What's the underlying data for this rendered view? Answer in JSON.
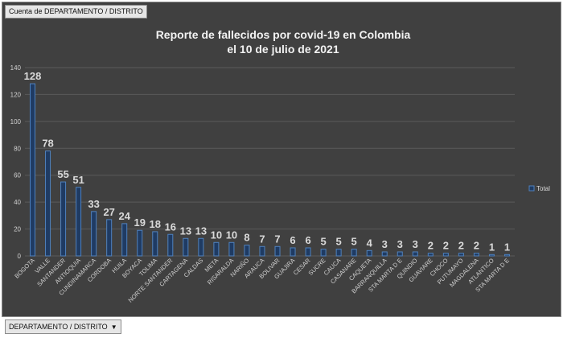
{
  "field_buttons": {
    "top": "Cuenta de DEPARTAMENTO  / DISTRITO",
    "bottom": "DEPARTAMENTO  / DISTRITO"
  },
  "colors": {
    "background": "#404040",
    "bar_fill": "#1f3b63",
    "bar_stroke": "#4f81bd",
    "gridline": "#5a5a5a",
    "text": "#d9d9d9"
  },
  "chart_data": {
    "type": "bar",
    "title": [
      "Reporte de fallecidos por covid-19 en Colombia",
      "el 10 de julio de 2021"
    ],
    "xlabel": "",
    "ylabel": "",
    "ylim": [
      0,
      140
    ],
    "yticks": [
      0,
      20,
      40,
      60,
      80,
      100,
      120,
      140
    ],
    "grid": true,
    "legend_position": "right",
    "categories": [
      "BOGOTA",
      "VALLE",
      "SANTANDER",
      "ANTIOQUIA",
      "CUNDINAMARCA",
      "CORDOBA",
      "HUILA",
      "BOYACA",
      "TOLIMA",
      "NORTE SANTANDER",
      "CARTAGENA",
      "CALDAS",
      "META",
      "RISARALDA",
      "NARIÑO",
      "ARAUCA",
      "BOLIVAR",
      "GUAJIRA",
      "CESAR",
      "SUCRE",
      "CAUCA",
      "CASANARE",
      "CAQUETA",
      "BARRANQUILLA",
      "STA MARTA D E",
      "QUINDIO",
      "GUAVIARE",
      "CHOCO",
      "PUTUMAYO",
      "MAGDALENA",
      "ATLANTICO",
      "STA MARTA D E"
    ],
    "series": [
      {
        "name": "Total",
        "values": [
          128,
          78,
          55,
          51,
          33,
          27,
          24,
          19,
          18,
          16,
          13,
          13,
          10,
          10,
          8,
          7,
          7,
          6,
          6,
          5,
          5,
          5,
          4,
          3,
          3,
          3,
          2,
          2,
          2,
          2,
          1,
          1
        ]
      }
    ]
  }
}
